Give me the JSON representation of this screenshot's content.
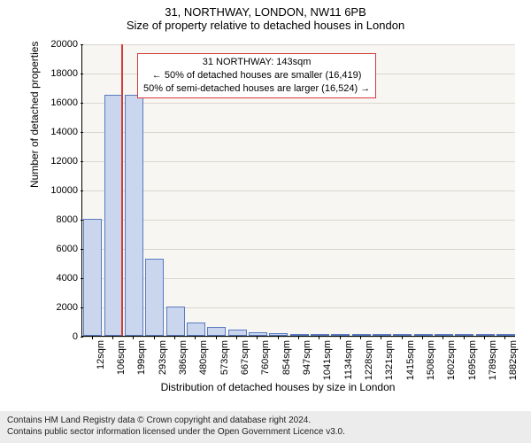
{
  "title": {
    "main": "31, NORTHWAY, LONDON, NW11 6PB",
    "sub": "Size of property relative to detached houses in London"
  },
  "chart": {
    "type": "bar",
    "plot_bg": "#f7f6f2",
    "grid_color": "#d9d7cf",
    "bar_fill": "#c9d6ee",
    "bar_stroke": "#5a7abf",
    "marker_color": "#d43a3a",
    "ylim": [
      0,
      20000
    ],
    "ytick_step": 2000,
    "y_ticks": [
      0,
      2000,
      4000,
      6000,
      8000,
      10000,
      12000,
      14000,
      16000,
      18000,
      20000
    ],
    "y_title": "Number of detached properties",
    "x_ticks": [
      "12sqm",
      "106sqm",
      "199sqm",
      "293sqm",
      "386sqm",
      "480sqm",
      "573sqm",
      "667sqm",
      "760sqm",
      "854sqm",
      "947sqm",
      "1041sqm",
      "1134sqm",
      "1228sqm",
      "1321sqm",
      "1415sqm",
      "1508sqm",
      "1602sqm",
      "1695sqm",
      "1789sqm",
      "1882sqm"
    ],
    "x_title": "Distribution of detached houses by size in London",
    "values": [
      8000,
      16500,
      16500,
      5300,
      2000,
      900,
      600,
      400,
      250,
      200,
      150,
      100,
      80,
      60,
      50,
      40,
      30,
      25,
      20,
      15,
      10
    ],
    "marker_at_sqm": 143,
    "annotation": {
      "line1": "31 NORTHWAY: 143sqm",
      "line2": "← 50% of detached houses are smaller (16,419)",
      "line3": "50% of semi-detached houses are larger (16,524) →"
    },
    "title_fontsize": 13,
    "axis_fontsize": 12,
    "tick_fontsize": 11
  },
  "footer": {
    "bg": "#ececec",
    "line1": "Contains HM Land Registry data © Crown copyright and database right 2024.",
    "line2": "Contains public sector information licensed under the Open Government Licence v3.0."
  }
}
